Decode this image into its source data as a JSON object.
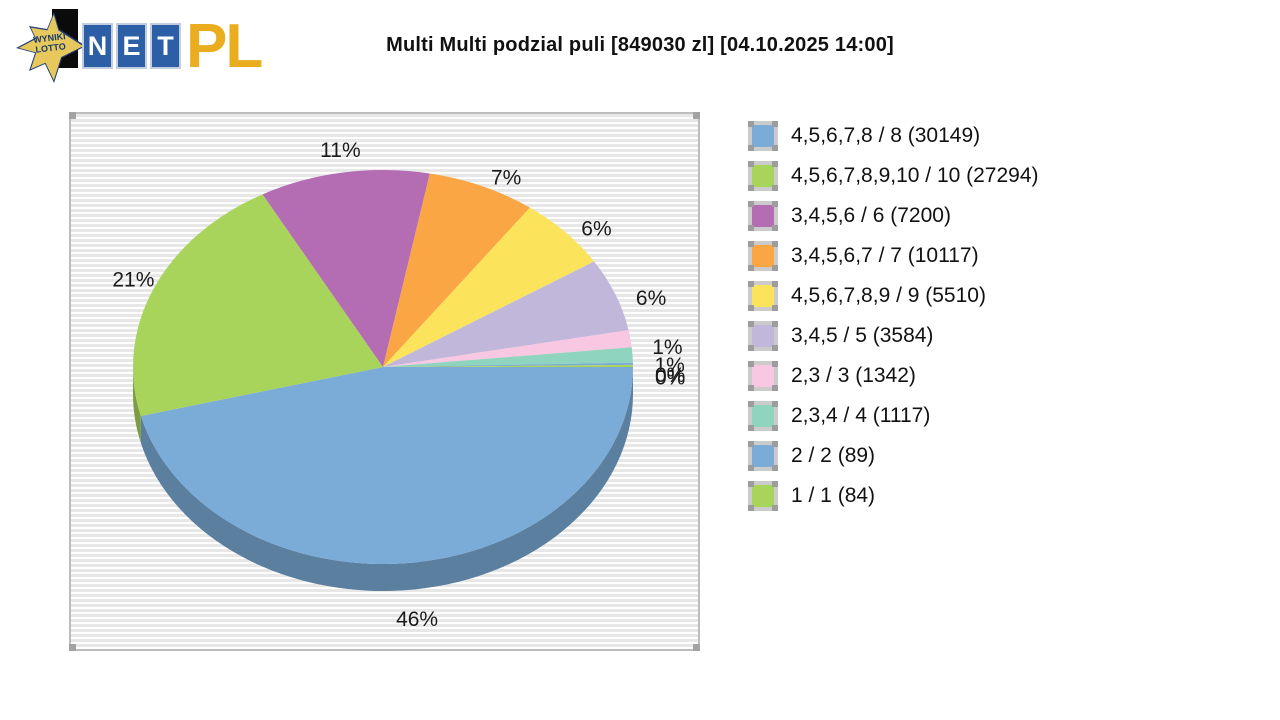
{
  "header": {
    "title": "Multi Multi podzial puli [849030 zl] [04.10.2025 14:00]",
    "logo": {
      "star_line1": "WYNIKI",
      "star_line2": "LOTTO",
      "net_letters": [
        "N",
        "E",
        "T"
      ],
      "suffix": "PL"
    }
  },
  "colors": {
    "star_fill": "#e6c85c",
    "star_border": "#24407a",
    "net_block": "#2d5fa7",
    "pl_text": "#e9ad1f",
    "plot_border": "#bdbdbd",
    "plot_stripe": "#e7e7e7",
    "label_text": "#1a1a1a"
  },
  "chart_data": {
    "type": "pie",
    "style": "3d",
    "title": "Multi Multi podzial puli [849030 zl] [04.10.2025 14:00]",
    "pool_total_text": "849030 zl",
    "draw_datetime_text": "04.10.2025 14:00",
    "start_angle_deg": 0,
    "direction": "clockwise",
    "legend_position": "right",
    "slices": [
      {
        "tier": "4,5,6,7,8 / 8",
        "value": 30149,
        "legend": "4,5,6,7,8 / 8 (30149)",
        "percent": 46,
        "percent_label": "46%",
        "weight": 46.0,
        "color": "#7bacd7"
      },
      {
        "tier": "4,5,6,7,8,9,10 / 10",
        "value": 27294,
        "legend": "4,5,6,7,8,9,10 / 10 (27294)",
        "percent": 21,
        "percent_label": "21%",
        "weight": 21.0,
        "color": "#a9d45c"
      },
      {
        "tier": "3,4,5,6 / 6",
        "value": 7200,
        "legend": "3,4,5,6 / 6 (7200)",
        "percent": 11,
        "percent_label": "11%",
        "weight": 11.0,
        "color": "#b46cb3"
      },
      {
        "tier": "3,4,5,6,7 / 7",
        "value": 10117,
        "legend": "3,4,5,6,7 / 7 (10117)",
        "percent": 7,
        "percent_label": "7%",
        "weight": 7.0,
        "color": "#faa645"
      },
      {
        "tier": "4,5,6,7,8,9 / 9",
        "value": 5510,
        "legend": "4,5,6,7,8,9 / 9 (5510)",
        "percent": 6,
        "percent_label": "6%",
        "weight": 6.0,
        "color": "#fbe45c"
      },
      {
        "tier": "3,4,5 / 5",
        "value": 3584,
        "legend": "3,4,5 / 5 (3584)",
        "percent": 6,
        "percent_label": "6%",
        "weight": 6.0,
        "color": "#c1b7db"
      },
      {
        "tier": "2,3 / 3",
        "value": 1342,
        "legend": "2,3 / 3 (1342)",
        "percent": 1,
        "percent_label": "1%",
        "weight": 1.4,
        "color": "#f8c8e2"
      },
      {
        "tier": "2,3,4 / 4",
        "value": 1117,
        "legend": "2,3,4 / 4 (1117)",
        "percent": 1,
        "percent_label": "1%",
        "weight": 1.25,
        "color": "#8fd4be"
      },
      {
        "tier": "2 / 2",
        "value": 89,
        "legend": "2 / 2 (89)",
        "percent": 0,
        "percent_label": "0%",
        "weight": 0.18,
        "color": "#7bacd7"
      },
      {
        "tier": "1 / 1",
        "value": 84,
        "legend": "1 / 1 (84)",
        "percent": 0,
        "percent_label": "0%",
        "weight": 0.17,
        "color": "#a9d45c"
      }
    ]
  }
}
